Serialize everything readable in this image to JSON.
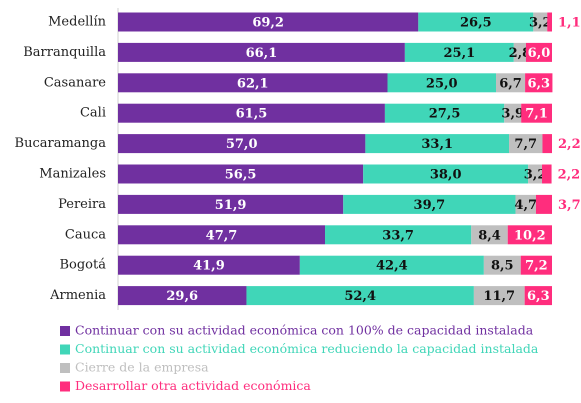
{
  "chart_data": {
    "type": "stacked-bar-horizontal",
    "categories": [
      "Medellín",
      "Barranquilla",
      "Casanare",
      "Cali",
      "Bucaramanga",
      "Manizales",
      "Pereira",
      "Cauca",
      "Bogotá",
      "Armenia"
    ],
    "xlim": [
      0,
      100
    ],
    "series": [
      {
        "name": "Continuar con su actividad económica con 100% de capacidad instalada",
        "color": "#7030a0",
        "values": [
          69.2,
          66.1,
          62.1,
          61.5,
          57,
          56.5,
          51.9,
          47.7,
          41.9,
          29.6
        ],
        "value_labels": [
          "69,2",
          "66,1",
          "62,1",
          "61,5",
          "57,0",
          "56,5",
          "51,9",
          "47,7",
          "41,9",
          "29,6"
        ]
      },
      {
        "name": "Continuar con su actividad económica reduciendo la capacidad instalada",
        "color": "#40d6b8",
        "values": [
          26.5,
          25.1,
          25,
          27.5,
          33.1,
          38,
          39.7,
          33.7,
          42.4,
          52.4
        ],
        "value_labels": [
          "26,5",
          "25,1",
          "25,0",
          "27,5",
          "33,1",
          "38,0",
          "39,7",
          "33,7",
          "42,4",
          "52,4"
        ]
      },
      {
        "name": "Cierre de la empresa",
        "color": "#bfbfbf",
        "values": [
          3.2,
          2.8,
          6.7,
          3.9,
          7.7,
          3.2,
          4.7,
          8.4,
          8.5,
          11.7
        ],
        "value_labels": [
          "3,2",
          "2,8",
          "6,7",
          "3,9",
          "7,7",
          "3,2",
          "4,7",
          "8,4",
          "8,5",
          "11,7"
        ]
      },
      {
        "name": "Desarrollar otra actividad económica",
        "color": "#ff2d7d",
        "values": [
          1.1,
          6,
          6.3,
          7.1,
          2.2,
          2.2,
          3.7,
          10.2,
          7.2,
          6.3
        ],
        "value_labels": [
          "1,1",
          "6,0",
          "6,3",
          "7,1",
          "2,2",
          "2,2",
          "3,7",
          "10,2",
          "7,2",
          "6,3"
        ]
      }
    ]
  }
}
